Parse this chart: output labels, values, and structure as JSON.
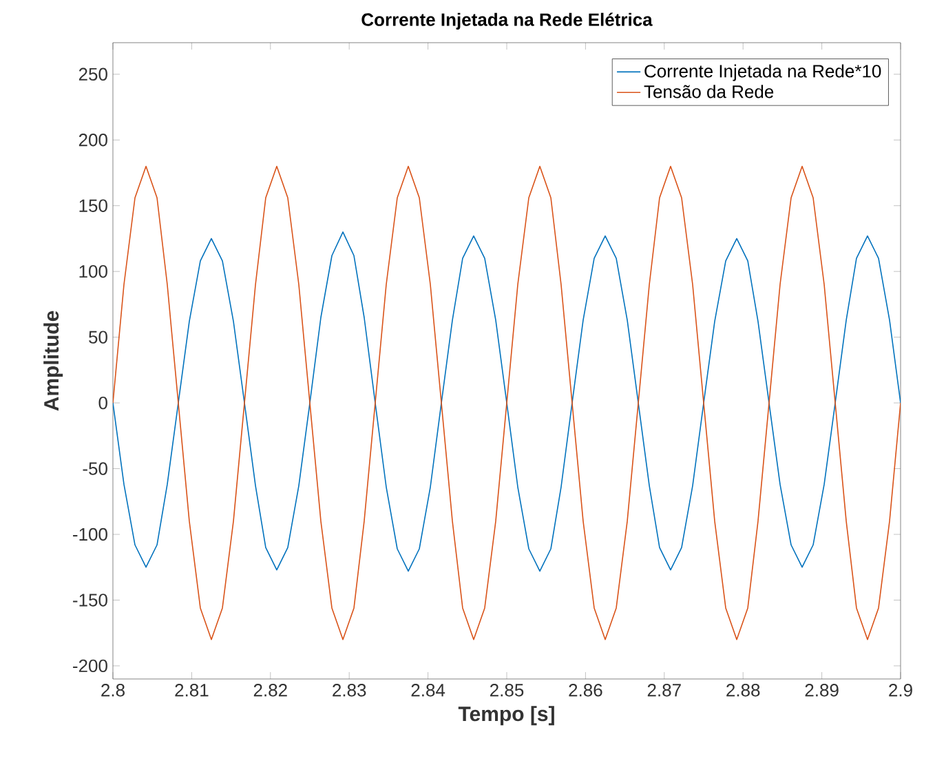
{
  "chart_data": {
    "type": "line",
    "title": "Corrente Injetada na Rede Elétrica",
    "xlabel": "Tempo [s]",
    "ylabel": "Amplitude",
    "x": [
      2.8,
      2.8014,
      2.8028,
      2.8042,
      2.8056,
      2.8069,
      2.8083,
      2.8097,
      2.8111,
      2.8125,
      2.8139,
      2.8153,
      2.8167,
      2.8181,
      2.8194,
      2.8208,
      2.8222,
      2.8236,
      2.825,
      2.8264,
      2.8278,
      2.8292,
      2.8306,
      2.8319,
      2.8333,
      2.8347,
      2.8361,
      2.8375,
      2.8389,
      2.8403,
      2.8417,
      2.8431,
      2.8444,
      2.8458,
      2.8472,
      2.8486,
      2.85,
      2.8514,
      2.8528,
      2.8542,
      2.8556,
      2.8569,
      2.8583,
      2.8597,
      2.8611,
      2.8625,
      2.8639,
      2.8653,
      2.8667,
      2.8681,
      2.8694,
      2.8708,
      2.8722,
      2.8736,
      2.875,
      2.8764,
      2.8778,
      2.8792,
      2.8806,
      2.8819,
      2.8833,
      2.8847,
      2.8861,
      2.8875,
      2.8889,
      2.8903,
      2.8917,
      2.8931,
      2.8944,
      2.8958,
      2.8972,
      2.8986,
      2.9
    ],
    "series": [
      {
        "name": "Corrente Injetada na Rede*10",
        "color": "#0072bd",
        "values": [
          0,
          -62,
          -108,
          -125,
          -108,
          -62,
          0,
          62,
          108,
          125,
          108,
          62,
          0,
          -63,
          -110,
          -127,
          -110,
          -63,
          0,
          65,
          112,
          130,
          112,
          65,
          0,
          -64,
          -111,
          -128,
          -111,
          -64,
          0,
          63,
          110,
          127,
          110,
          63,
          0,
          -64,
          -111,
          -128,
          -111,
          -64,
          0,
          63,
          110,
          127,
          110,
          63,
          0,
          -63,
          -110,
          -127,
          -110,
          -63,
          0,
          62,
          108,
          125,
          108,
          62,
          0,
          -62,
          -108,
          -125,
          -108,
          -62,
          0,
          63,
          110,
          127,
          110,
          63,
          0
        ]
      },
      {
        "name": "Tensão da Rede",
        "color": "#d95319",
        "values": [
          0,
          90,
          156,
          180,
          156,
          90,
          0,
          -90,
          -156,
          -180,
          -156,
          -90,
          0,
          90,
          156,
          180,
          156,
          90,
          0,
          -90,
          -156,
          -180,
          -156,
          -90,
          0,
          90,
          156,
          180,
          156,
          90,
          0,
          -90,
          -156,
          -180,
          -156,
          -90,
          0,
          90,
          156,
          180,
          156,
          90,
          0,
          -90,
          -156,
          -180,
          -156,
          -90,
          0,
          90,
          156,
          180,
          156,
          90,
          0,
          -90,
          -156,
          -180,
          -156,
          -90,
          0,
          90,
          156,
          180,
          156,
          90,
          0,
          -90,
          -156,
          -180,
          -156,
          -90,
          0
        ]
      }
    ],
    "xlim": [
      2.8,
      2.9
    ],
    "xticks": [
      2.8,
      2.81,
      2.82,
      2.83,
      2.84,
      2.85,
      2.86,
      2.87,
      2.88,
      2.89,
      2.9
    ],
    "ylim": [
      -210,
      274
    ],
    "yticks": [
      -200,
      -150,
      -100,
      -50,
      0,
      50,
      100,
      150,
      200,
      250
    ],
    "legend": "top right",
    "grid": false,
    "marker": "none",
    "line_style": "solid"
  }
}
